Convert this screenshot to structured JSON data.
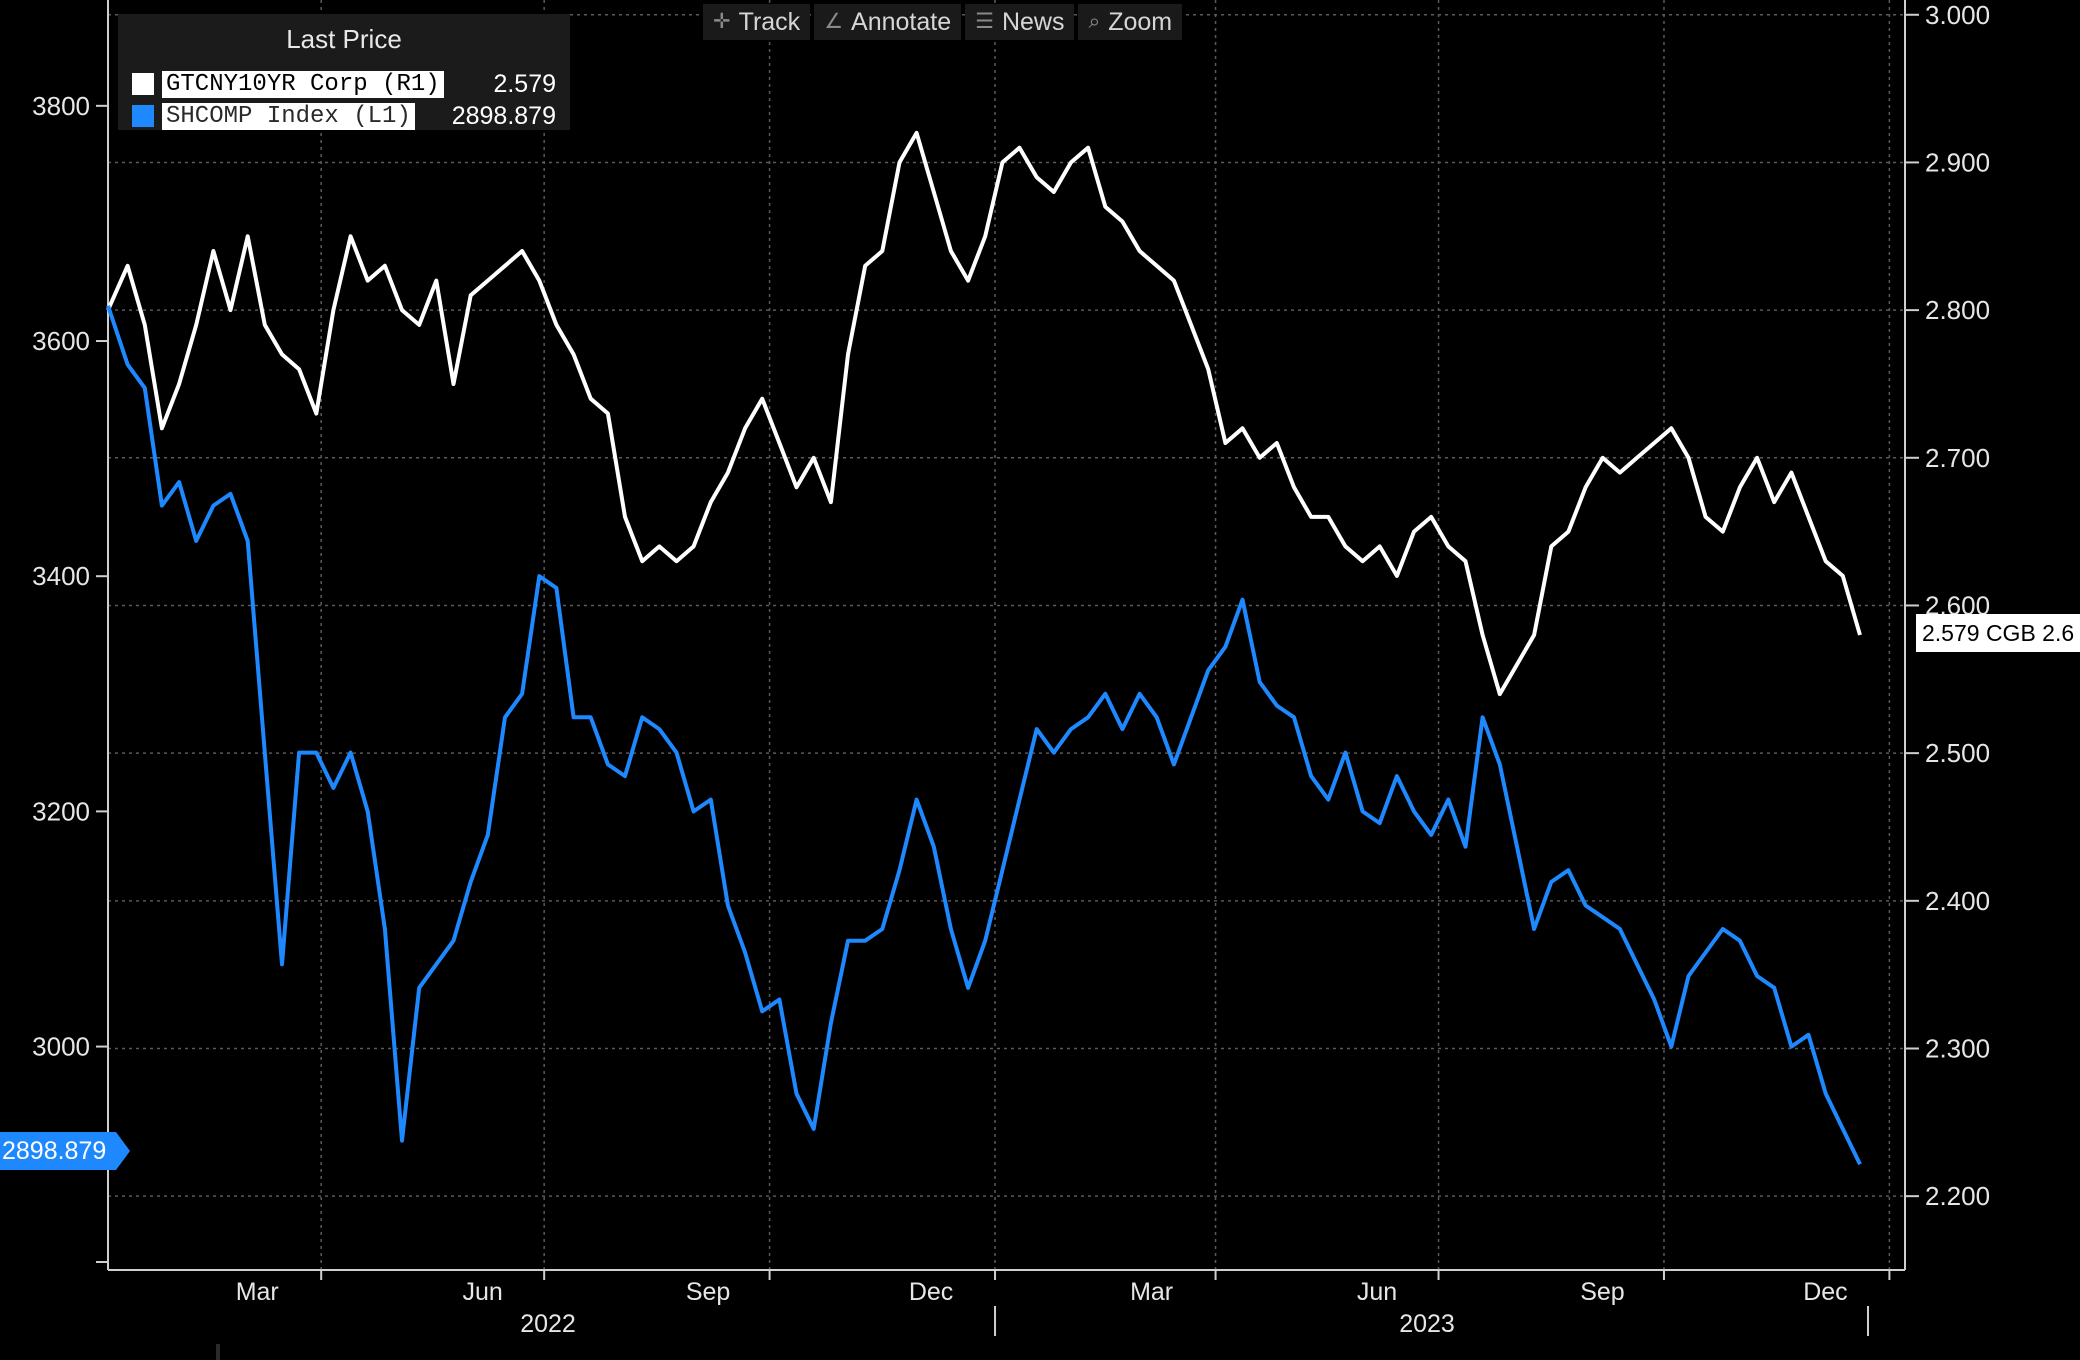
{
  "toolbar": {
    "track_label": "Track",
    "annotate_label": "Annotate",
    "news_label": "News",
    "zoom_label": "Zoom"
  },
  "legend": {
    "title": "Last Price",
    "series": [
      {
        "name": "GTCNY10YR Corp  (R1)",
        "value": "2.579",
        "color": "#ffffff"
      },
      {
        "name": "SHCOMP Index  (L1)",
        "value": "2898.879",
        "color": "#1e88ff"
      }
    ]
  },
  "last_labels": {
    "left": "2898.879",
    "right": "2.579 CGB 2.6"
  },
  "chart_data": {
    "type": "line",
    "x_axis": {
      "tick_labels": [
        "Mar",
        "Jun",
        "Sep",
        "Dec",
        "Mar",
        "Jun",
        "Sep",
        "Dec"
      ],
      "year_labels": [
        "2022",
        "2023"
      ],
      "range": [
        "2022-01-04",
        "2023-12-20"
      ]
    },
    "y_left": {
      "ticks": [
        3000,
        3200,
        3400,
        3600,
        3800
      ],
      "range": [
        2810,
        3890
      ]
    },
    "y_right": {
      "ticks": [
        "2.200",
        "2.300",
        "2.400",
        "2.500",
        "2.600",
        "2.700",
        "2.800",
        "2.900",
        "3.000"
      ],
      "range": [
        2.15,
        3.01
      ]
    },
    "grid": true,
    "series": [
      {
        "name": "GTCNY10YR Corp  (R1)",
        "axis": "right",
        "color": "#ffffff",
        "x": [
          "2022-01-04",
          "2022-01-12",
          "2022-01-19",
          "2022-01-26",
          "2022-02-02",
          "2022-02-09",
          "2022-02-16",
          "2022-02-23",
          "2022-03-02",
          "2022-03-09",
          "2022-03-16",
          "2022-03-23",
          "2022-03-30",
          "2022-04-06",
          "2022-04-13",
          "2022-04-20",
          "2022-04-27",
          "2022-05-04",
          "2022-05-11",
          "2022-05-18",
          "2022-05-25",
          "2022-06-01",
          "2022-06-08",
          "2022-06-15",
          "2022-06-22",
          "2022-06-29",
          "2022-07-06",
          "2022-07-13",
          "2022-07-20",
          "2022-07-27",
          "2022-08-03",
          "2022-08-10",
          "2022-08-17",
          "2022-08-24",
          "2022-08-31",
          "2022-09-07",
          "2022-09-14",
          "2022-09-21",
          "2022-09-28",
          "2022-10-05",
          "2022-10-12",
          "2022-10-19",
          "2022-10-26",
          "2022-11-02",
          "2022-11-09",
          "2022-11-16",
          "2022-11-23",
          "2022-11-30",
          "2022-12-07",
          "2022-12-14",
          "2022-12-21",
          "2022-12-28",
          "2023-01-04",
          "2023-01-11",
          "2023-01-18",
          "2023-01-25",
          "2023-02-01",
          "2023-02-08",
          "2023-02-15",
          "2023-02-22",
          "2023-03-01",
          "2023-03-08",
          "2023-03-15",
          "2023-03-22",
          "2023-03-29",
          "2023-04-05",
          "2023-04-12",
          "2023-04-19",
          "2023-04-26",
          "2023-05-03",
          "2023-05-10",
          "2023-05-17",
          "2023-05-24",
          "2023-05-31",
          "2023-06-07",
          "2023-06-14",
          "2023-06-21",
          "2023-06-28",
          "2023-07-05",
          "2023-07-12",
          "2023-07-19",
          "2023-07-26",
          "2023-08-02",
          "2023-08-09",
          "2023-08-16",
          "2023-08-23",
          "2023-08-30",
          "2023-09-06",
          "2023-09-13",
          "2023-09-20",
          "2023-09-27",
          "2023-10-04",
          "2023-10-11",
          "2023-10-18",
          "2023-10-25",
          "2023-11-01",
          "2023-11-08",
          "2023-11-15",
          "2023-11-22",
          "2023-11-29",
          "2023-12-06",
          "2023-12-13",
          "2023-12-20"
        ],
        "values": [
          2.8,
          2.83,
          2.79,
          2.72,
          2.75,
          2.79,
          2.84,
          2.8,
          2.85,
          2.79,
          2.77,
          2.76,
          2.73,
          2.8,
          2.85,
          2.82,
          2.83,
          2.8,
          2.79,
          2.82,
          2.75,
          2.81,
          2.82,
          2.83,
          2.84,
          2.82,
          2.79,
          2.77,
          2.74,
          2.73,
          2.66,
          2.63,
          2.64,
          2.63,
          2.64,
          2.67,
          2.69,
          2.72,
          2.74,
          2.71,
          2.68,
          2.7,
          2.67,
          2.77,
          2.83,
          2.84,
          2.9,
          2.92,
          2.88,
          2.84,
          2.82,
          2.85,
          2.9,
          2.91,
          2.89,
          2.88,
          2.9,
          2.91,
          2.87,
          2.86,
          2.84,
          2.83,
          2.82,
          2.79,
          2.76,
          2.71,
          2.72,
          2.7,
          2.71,
          2.68,
          2.66,
          2.66,
          2.64,
          2.63,
          2.64,
          2.62,
          2.65,
          2.66,
          2.64,
          2.63,
          2.58,
          2.54,
          2.56,
          2.58,
          2.64,
          2.65,
          2.68,
          2.7,
          2.69,
          2.7,
          2.71,
          2.72,
          2.7,
          2.66,
          2.65,
          2.68,
          2.7,
          2.67,
          2.69,
          2.66,
          2.63,
          2.62,
          2.58
        ]
      },
      {
        "name": "SHCOMP Index  (L1)",
        "axis": "left",
        "color": "#1e88ff",
        "x": [
          "2022-01-04",
          "2022-01-12",
          "2022-01-19",
          "2022-01-26",
          "2022-02-02",
          "2022-02-09",
          "2022-02-16",
          "2022-02-23",
          "2022-03-02",
          "2022-03-09",
          "2022-03-16",
          "2022-03-23",
          "2022-03-30",
          "2022-04-06",
          "2022-04-13",
          "2022-04-20",
          "2022-04-27",
          "2022-05-04",
          "2022-05-11",
          "2022-05-18",
          "2022-05-25",
          "2022-06-01",
          "2022-06-08",
          "2022-06-15",
          "2022-06-22",
          "2022-06-29",
          "2022-07-06",
          "2022-07-13",
          "2022-07-20",
          "2022-07-27",
          "2022-08-03",
          "2022-08-10",
          "2022-08-17",
          "2022-08-24",
          "2022-08-31",
          "2022-09-07",
          "2022-09-14",
          "2022-09-21",
          "2022-09-28",
          "2022-10-05",
          "2022-10-12",
          "2022-10-19",
          "2022-10-26",
          "2022-11-02",
          "2022-11-09",
          "2022-11-16",
          "2022-11-23",
          "2022-11-30",
          "2022-12-07",
          "2022-12-14",
          "2022-12-21",
          "2022-12-28",
          "2023-01-04",
          "2023-01-11",
          "2023-01-18",
          "2023-01-25",
          "2023-02-01",
          "2023-02-08",
          "2023-02-15",
          "2023-02-22",
          "2023-03-01",
          "2023-03-08",
          "2023-03-15",
          "2023-03-22",
          "2023-03-29",
          "2023-04-05",
          "2023-04-12",
          "2023-04-19",
          "2023-04-26",
          "2023-05-03",
          "2023-05-10",
          "2023-05-17",
          "2023-05-24",
          "2023-05-31",
          "2023-06-07",
          "2023-06-14",
          "2023-06-21",
          "2023-06-28",
          "2023-07-05",
          "2023-07-12",
          "2023-07-19",
          "2023-07-26",
          "2023-08-02",
          "2023-08-09",
          "2023-08-16",
          "2023-08-23",
          "2023-08-30",
          "2023-09-06",
          "2023-09-13",
          "2023-09-20",
          "2023-09-27",
          "2023-10-04",
          "2023-10-11",
          "2023-10-18",
          "2023-10-25",
          "2023-11-01",
          "2023-11-08",
          "2023-11-15",
          "2023-11-22",
          "2023-11-29",
          "2023-12-06",
          "2023-12-13",
          "2023-12-20"
        ],
        "values": [
          3630,
          3580,
          3560,
          3460,
          3480,
          3430,
          3460,
          3470,
          3430,
          3250,
          3070,
          3250,
          3250,
          3220,
          3250,
          3200,
          3100,
          2920,
          3050,
          3070,
          3090,
          3140,
          3180,
          3280,
          3300,
          3400,
          3390,
          3280,
          3280,
          3240,
          3230,
          3280,
          3270,
          3250,
          3200,
          3210,
          3120,
          3080,
          3030,
          3040,
          2960,
          2930,
          3020,
          3090,
          3090,
          3100,
          3150,
          3210,
          3170,
          3100,
          3050,
          3090,
          3150,
          3210,
          3270,
          3250,
          3270,
          3280,
          3300,
          3270,
          3300,
          3280,
          3240,
          3280,
          3320,
          3340,
          3380,
          3310,
          3290,
          3280,
          3230,
          3210,
          3250,
          3200,
          3190,
          3230,
          3200,
          3180,
          3210,
          3170,
          3280,
          3240,
          3170,
          3100,
          3140,
          3150,
          3120,
          3110,
          3100,
          3070,
          3040,
          3000,
          3060,
          3080,
          3100,
          3090,
          3060,
          3050,
          3000,
          3010,
          2960,
          2930,
          2900
        ]
      }
    ]
  }
}
